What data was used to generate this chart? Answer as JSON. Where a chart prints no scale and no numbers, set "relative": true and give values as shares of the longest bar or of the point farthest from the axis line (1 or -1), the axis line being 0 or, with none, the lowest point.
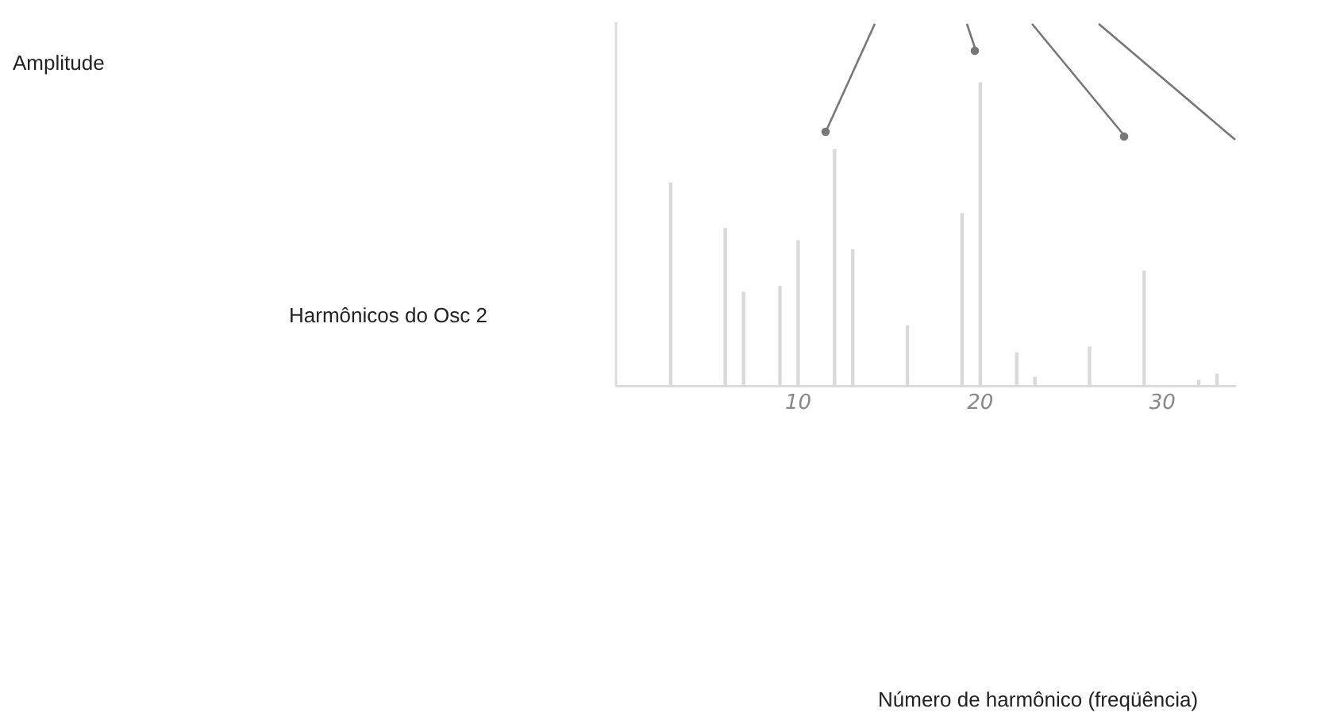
{
  "chart_data": {
    "type": "bar",
    "title": "Harmônicos do Osc 2",
    "annotations": [
      "Amplitude",
      "Número de harmônico (freqüência)"
    ],
    "relative": true,
    "tick_labels": "x",
    "grid": false,
    "legend": false,
    "color": "#d9d9d9",
    "x": [
      3,
      6,
      7,
      9,
      10,
      12,
      13,
      16,
      19,
      20,
      22,
      23,
      26,
      29,
      32,
      33
    ],
    "values": [
      0.67,
      0.52,
      0.31,
      0.33,
      0.48,
      0.78,
      0.45,
      0.2,
      0.57,
      1.0,
      0.11,
      0.03,
      0.13,
      0.38,
      0.02,
      0.04
    ],
    "xlim": [
      0,
      34
    ],
    "xticks": [
      10,
      20,
      30
    ]
  }
}
